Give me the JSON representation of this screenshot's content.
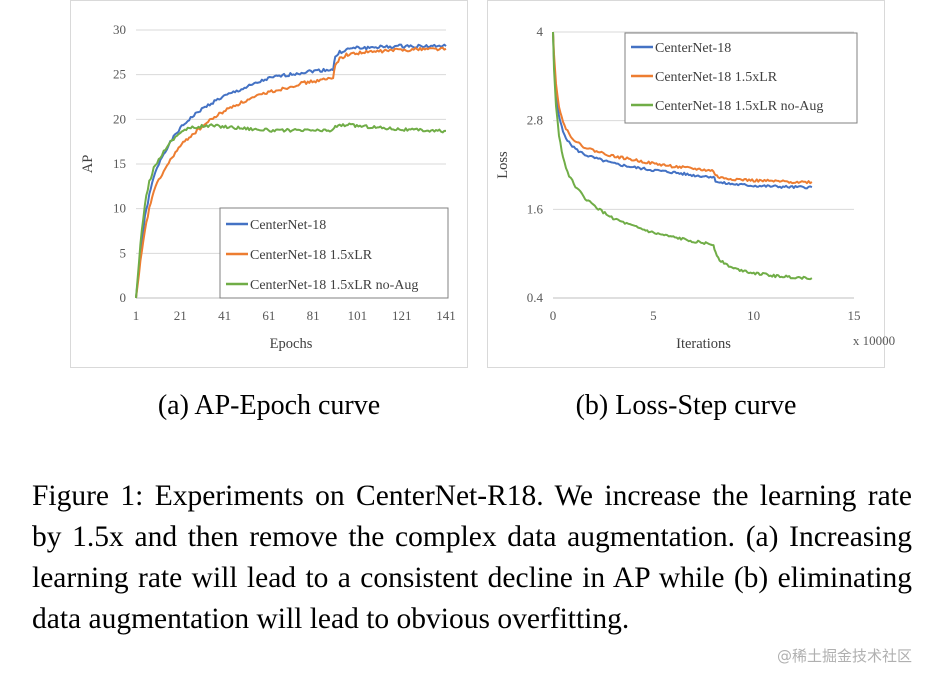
{
  "colors": {
    "blue": "#4472c4",
    "orange": "#ed7d31",
    "green": "#70ad47",
    "grid": "#d9d9d9",
    "frame": "#d9d9d9"
  },
  "chart_data": [
    {
      "id": "ap-epoch",
      "type": "line",
      "xlabel": "Epochs",
      "ylabel": "AP",
      "xlim": [
        1,
        141
      ],
      "ylim": [
        0,
        30
      ],
      "xticks": [
        1,
        21,
        41,
        61,
        81,
        101,
        121,
        141
      ],
      "yticks": [
        0,
        5,
        10,
        15,
        20,
        25,
        30
      ],
      "legend_position": "bottom-right",
      "series": [
        {
          "name": "CenterNet-18",
          "color": "#4472c4",
          "x": [
            1,
            3,
            5,
            7,
            9,
            12,
            15,
            18,
            21,
            25,
            30,
            35,
            40,
            45,
            50,
            55,
            60,
            65,
            70,
            75,
            80,
            85,
            90,
            91,
            93,
            96,
            100,
            105,
            110,
            115,
            120,
            125,
            130,
            135,
            141
          ],
          "y": [
            0,
            5,
            9,
            11.5,
            13.5,
            15.5,
            16.8,
            18,
            19,
            20,
            21,
            21.8,
            22.5,
            23,
            23.5,
            24,
            24.5,
            24.8,
            25,
            25.2,
            25.4,
            25.5,
            25.6,
            27,
            27.5,
            27.8,
            28,
            28,
            28.1,
            28.1,
            28.2,
            28.2,
            28.2,
            28.2,
            28.2
          ]
        },
        {
          "name": "CenterNet-18 1.5xLR",
          "color": "#ed7d31",
          "x": [
            1,
            3,
            5,
            7,
            9,
            12,
            15,
            18,
            21,
            25,
            30,
            35,
            40,
            45,
            50,
            55,
            60,
            65,
            70,
            75,
            80,
            85,
            90,
            91,
            93,
            96,
            100,
            105,
            110,
            115,
            120,
            125,
            130,
            135,
            141
          ],
          "y": [
            0,
            4,
            7.5,
            10,
            12,
            13.5,
            14.8,
            16,
            17,
            18,
            19,
            20,
            20.8,
            21.5,
            22,
            22.5,
            23,
            23.3,
            23.6,
            24,
            24.2,
            24.4,
            24.6,
            26.2,
            26.8,
            27.2,
            27.4,
            27.5,
            27.6,
            27.7,
            27.8,
            27.8,
            27.9,
            27.9,
            27.9
          ]
        },
        {
          "name": "CenterNet-18 1.5xLR no-Aug",
          "color": "#70ad47",
          "x": [
            1,
            3,
            5,
            7,
            9,
            12,
            15,
            18,
            21,
            25,
            30,
            35,
            40,
            45,
            50,
            55,
            60,
            65,
            70,
            75,
            80,
            85,
            90,
            91,
            93,
            96,
            100,
            105,
            110,
            115,
            120,
            125,
            130,
            135,
            141
          ],
          "y": [
            0,
            6,
            10.5,
            13,
            14.5,
            15.8,
            17,
            17.8,
            18.6,
            19,
            19.2,
            19.3,
            19.2,
            19.1,
            19.0,
            18.9,
            18.8,
            18.7,
            18.8,
            18.7,
            18.8,
            18.7,
            18.8,
            19.2,
            19.3,
            19.4,
            19.3,
            19.2,
            19.1,
            19.0,
            18.9,
            18.8,
            18.8,
            18.7,
            18.7
          ]
        }
      ]
    },
    {
      "id": "loss-step",
      "type": "line",
      "xlabel": "Iterations",
      "ylabel": "Loss",
      "x_multiplier_label": "x 10000",
      "xlim": [
        0,
        15
      ],
      "ylim": [
        0.4,
        4
      ],
      "xticks": [
        0,
        5,
        10,
        15
      ],
      "yticks": [
        0.4,
        1.6,
        2.8,
        4
      ],
      "legend_position": "top-right",
      "series": [
        {
          "name": "CenterNet-18",
          "color": "#4472c4",
          "x": [
            0,
            0.05,
            0.15,
            0.3,
            0.5,
            0.8,
            1.2,
            1.6,
            2,
            2.5,
            3,
            4,
            5,
            6,
            7,
            8,
            8.1,
            8.3,
            9,
            10,
            11,
            12,
            12.9
          ],
          "y": [
            4,
            3.6,
            3.15,
            2.85,
            2.65,
            2.5,
            2.4,
            2.34,
            2.3,
            2.26,
            2.22,
            2.17,
            2.13,
            2.1,
            2.06,
            2.04,
            1.99,
            1.96,
            1.94,
            1.92,
            1.91,
            1.9,
            1.9
          ]
        },
        {
          "name": "CenterNet-18 1.5xLR",
          "color": "#ed7d31",
          "x": [
            0,
            0.05,
            0.15,
            0.3,
            0.5,
            0.8,
            1.2,
            1.6,
            2,
            2.5,
            3,
            4,
            5,
            6,
            7,
            8,
            8.1,
            8.3,
            9,
            10,
            11,
            12,
            12.9
          ],
          "y": [
            4,
            3.7,
            3.3,
            3.0,
            2.78,
            2.62,
            2.5,
            2.44,
            2.4,
            2.36,
            2.32,
            2.27,
            2.22,
            2.18,
            2.15,
            2.12,
            2.06,
            2.03,
            2.01,
            1.99,
            1.98,
            1.97,
            1.97
          ]
        },
        {
          "name": "CenterNet-18 1.5xLR no-Aug",
          "color": "#70ad47",
          "x": [
            0,
            0.05,
            0.15,
            0.3,
            0.5,
            0.8,
            1.2,
            1.6,
            2,
            2.5,
            3,
            3.5,
            4,
            5,
            6,
            7,
            8,
            8.1,
            8.3,
            8.6,
            9,
            10,
            11,
            12,
            12.9
          ],
          "y": [
            4,
            3.5,
            3.0,
            2.6,
            2.3,
            2.05,
            1.88,
            1.75,
            1.66,
            1.56,
            1.48,
            1.42,
            1.37,
            1.28,
            1.22,
            1.17,
            1.12,
            1.02,
            0.92,
            0.86,
            0.8,
            0.74,
            0.7,
            0.68,
            0.67
          ]
        }
      ]
    }
  ],
  "subcaptions": {
    "a": "(a) AP-Epoch curve",
    "b": "(b) Loss-Step curve"
  },
  "caption": "Figure 1: Experiments on CenterNet-R18. We increase the learning rate by 1.5x and then remove the complex data augmentation. (a) Increasing learning rate will lead to a consistent decline in AP while (b) eliminating data augmentation will lead to obvious overfitting.",
  "watermark": "@稀土掘金技术社区"
}
